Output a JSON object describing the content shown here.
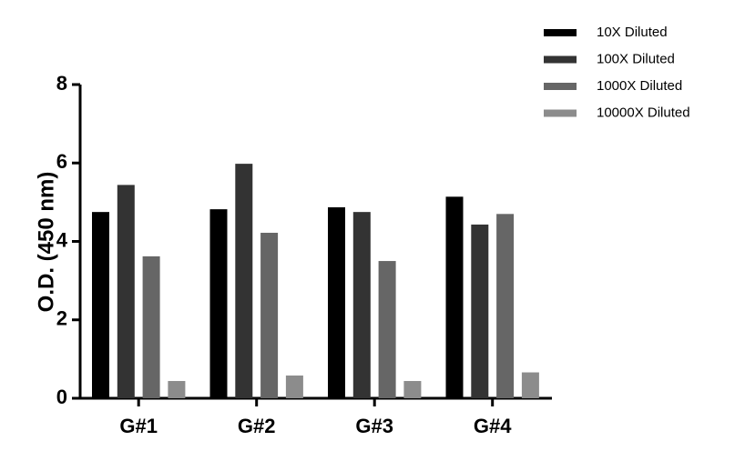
{
  "chart_data": {
    "type": "bar",
    "ylabel": "O.D. (450 nm)",
    "xlabel": "",
    "categories": [
      "G#1",
      "G#2",
      "G#3",
      "G#4"
    ],
    "ylim": [
      0,
      8
    ],
    "yticks": [
      "0",
      "2",
      "4",
      "6",
      "8"
    ],
    "legend_position": "top-right",
    "grid": false,
    "series": [
      {
        "name": "10X Diluted",
        "color": "#000000",
        "values": [
          4.75,
          4.82,
          4.87,
          5.14
        ]
      },
      {
        "name": "100X Diluted",
        "color": "#333333",
        "values": [
          5.44,
          5.98,
          4.75,
          4.43
        ]
      },
      {
        "name": "1000X Diluted",
        "color": "#666666",
        "values": [
          3.62,
          4.22,
          3.5,
          4.7
        ]
      },
      {
        "name": "10000X Diluted",
        "color": "#8c8c8c",
        "values": [
          0.44,
          0.58,
          0.44,
          0.66
        ]
      }
    ]
  }
}
